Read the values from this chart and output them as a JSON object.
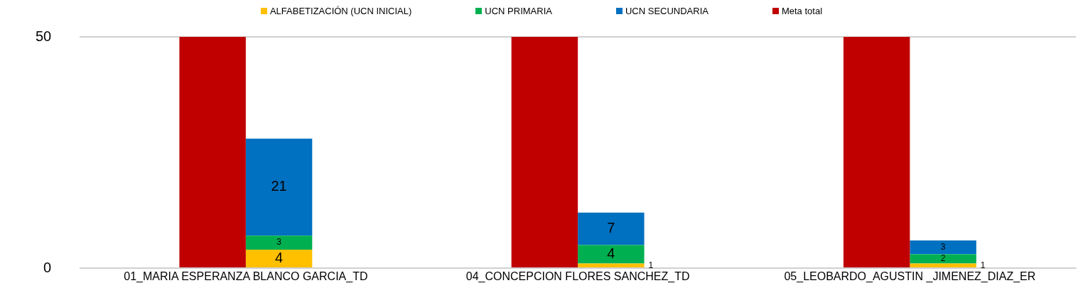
{
  "chart_data": {
    "type": "bar",
    "categories": [
      "01_MARIA ESPERANZA BLANCO GARCIA_TD",
      "04_CONCEPCION FLORES SANCHEZ_TD",
      "05_LEOBARDO_AGUSTIN _JIMENEZ_DIAZ_ER"
    ],
    "series": [
      {
        "name": "ALFABETIZACIÓN (UCN INICIAL)",
        "color": "#ffc000",
        "values": [
          4,
          1,
          1
        ],
        "base": [
          0,
          0,
          0
        ],
        "value_labels": [
          "4",
          "1",
          "1"
        ]
      },
      {
        "name": "UCN PRIMARIA",
        "color": "#00b050",
        "values": [
          3,
          4,
          2
        ],
        "base": [
          4,
          1,
          1
        ],
        "value_labels": [
          "3",
          "4",
          "2"
        ]
      },
      {
        "name": "UCN SECUNDARIA",
        "color": "#0070c0",
        "values": [
          21,
          7,
          3
        ],
        "base": [
          7,
          5,
          3
        ],
        "value_labels": [
          "21",
          "7",
          "3"
        ]
      },
      {
        "name": "Meta total",
        "color": "#c00000",
        "values": [
          50,
          50,
          50
        ]
      }
    ],
    "ylim": [
      0,
      50
    ],
    "yticks": [
      0,
      50
    ],
    "grid": "y",
    "legend": "top"
  }
}
